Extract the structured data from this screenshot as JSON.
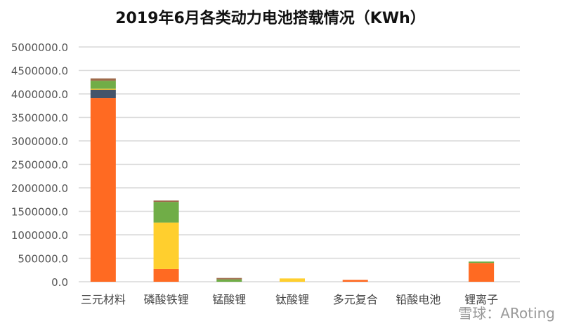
{
  "chart_data": {
    "type": "bar",
    "stacked": true,
    "title": "2019年6月各类动力电池搭载情况（KWh）",
    "categories": [
      "三元材料",
      "磷酸铁锂",
      "锰酸锂",
      "钛酸锂",
      "多元复合",
      "铅酸电池",
      "锂离子"
    ],
    "series": [
      {
        "color": "#FF6A22",
        "values": [
          3910000,
          270000,
          0,
          0,
          40000,
          0,
          400000
        ]
      },
      {
        "color": "#44546A",
        "values": [
          180000,
          0,
          0,
          0,
          0,
          0,
          0
        ]
      },
      {
        "color": "#FFCF2E",
        "values": [
          20000,
          990000,
          0,
          70000,
          0,
          0,
          0
        ]
      },
      {
        "color": "#70AD47",
        "values": [
          170000,
          440000,
          50000,
          0,
          0,
          0,
          30000
        ]
      },
      {
        "color": "#9E6A4A",
        "values": [
          50000,
          30000,
          30000,
          0,
          0,
          0,
          0
        ]
      }
    ],
    "ylim": [
      0,
      5000000
    ],
    "yticks": [
      "0.0",
      "500000.0",
      "1000000.0",
      "1500000.0",
      "2000000.0",
      "2500000.0",
      "3000000.0",
      "3500000.0",
      "4000000.0",
      "4500000.0",
      "5000000.0"
    ],
    "grid": true,
    "legend": "none"
  },
  "watermark": "雪球：ARoting"
}
